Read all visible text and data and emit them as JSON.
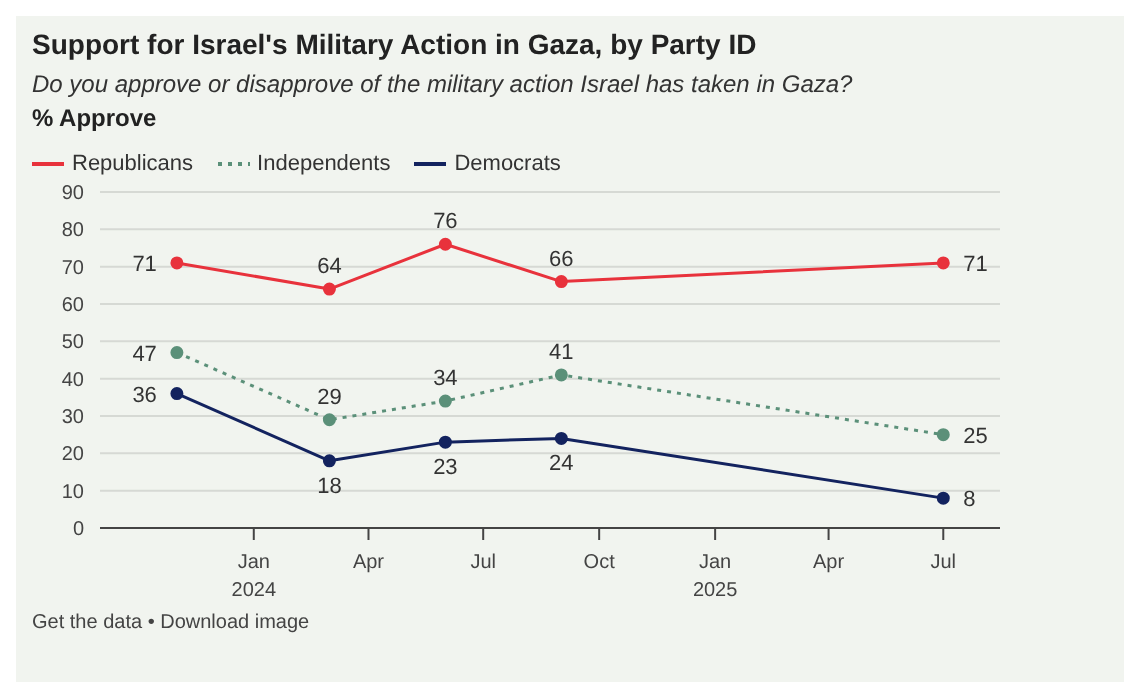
{
  "chart_data": {
    "type": "line",
    "title": "Support for Israel's Military Action in Gaza, by Party ID",
    "subtitle": "Do you approve or disapprove of the military action Israel has taken in Gaza?",
    "ylabel": "% Approve",
    "x": [
      "2023-11",
      "2024-03",
      "2024-06",
      "2024-09",
      "2025-07"
    ],
    "series": [
      {
        "name": "Republicans",
        "color": "#e8323c",
        "values": [
          71,
          64,
          76,
          66,
          71
        ],
        "line_style": "solid"
      },
      {
        "name": "Independents",
        "color": "#5b9079",
        "values": [
          47,
          29,
          34,
          41,
          25
        ],
        "line_style": "dotted"
      },
      {
        "name": "Democrats",
        "color": "#13235f",
        "values": [
          36,
          18,
          23,
          24,
          8
        ],
        "line_style": "solid"
      }
    ],
    "xlim": [
      "2023-09",
      "2025-08-15"
    ],
    "xticks": [
      {
        "value": "2024-01",
        "label": "Jan 2024"
      },
      {
        "value": "2024-04",
        "label": "Apr"
      },
      {
        "value": "2024-07",
        "label": "Jul"
      },
      {
        "value": "2024-10",
        "label": "Oct"
      },
      {
        "value": "2025-01",
        "label": "Jan 2025"
      },
      {
        "value": "2025-04",
        "label": "Apr"
      },
      {
        "value": "2025-07",
        "label": "Jul"
      }
    ],
    "ylim": [
      0,
      90
    ],
    "yticks": [
      0,
      10,
      20,
      30,
      40,
      50,
      60,
      70,
      80,
      90
    ],
    "grid": "y",
    "legend": "top left",
    "marker": "circle",
    "data_labels": true,
    "annotations": [
      "Get the data • Download image"
    ]
  }
}
